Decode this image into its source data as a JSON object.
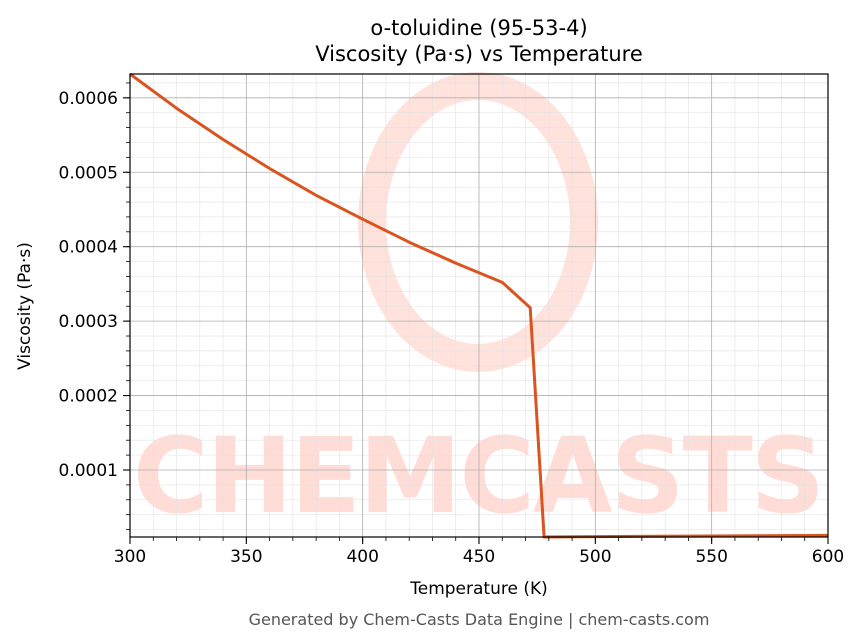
{
  "chart_data": {
    "type": "line",
    "title": "o-toluidine (95-53-4)",
    "subtitle": "Viscosity (Pa·s) vs Temperature",
    "xlabel": "Temperature (K)",
    "ylabel": "Viscosity (Pa·s)",
    "xlim": [
      300,
      600
    ],
    "ylim": [
      1e-05,
      0.000632
    ],
    "x_ticks": [
      300,
      350,
      400,
      450,
      500,
      550,
      600
    ],
    "x_tick_labels": [
      "300",
      "350",
      "400",
      "450",
      "500",
      "550",
      "600"
    ],
    "y_ticks": [
      0.0001,
      0.0002,
      0.0003,
      0.0004,
      0.0005,
      0.0006
    ],
    "y_tick_labels": [
      "0.0001",
      "0.0002",
      "0.0003",
      "0.0004",
      "0.0005",
      "0.0006"
    ],
    "grid": true,
    "series": [
      {
        "color": "#d9541e",
        "x": [
          300,
          320,
          340,
          360,
          380,
          400,
          420,
          440,
          460,
          472,
          478,
          500,
          550,
          600
        ],
        "y": [
          0.000632,
          0.000586,
          0.000544,
          0.000505,
          0.000469,
          0.000437,
          0.000406,
          0.000378,
          0.000352,
          0.000318,
          1e-05,
          1.05e-05,
          1.13e-05,
          1.21e-05
        ]
      }
    ]
  },
  "footer": "Generated by Chem-Casts Data Engine | chem-casts.com",
  "watermark": "CHEMCASTS"
}
